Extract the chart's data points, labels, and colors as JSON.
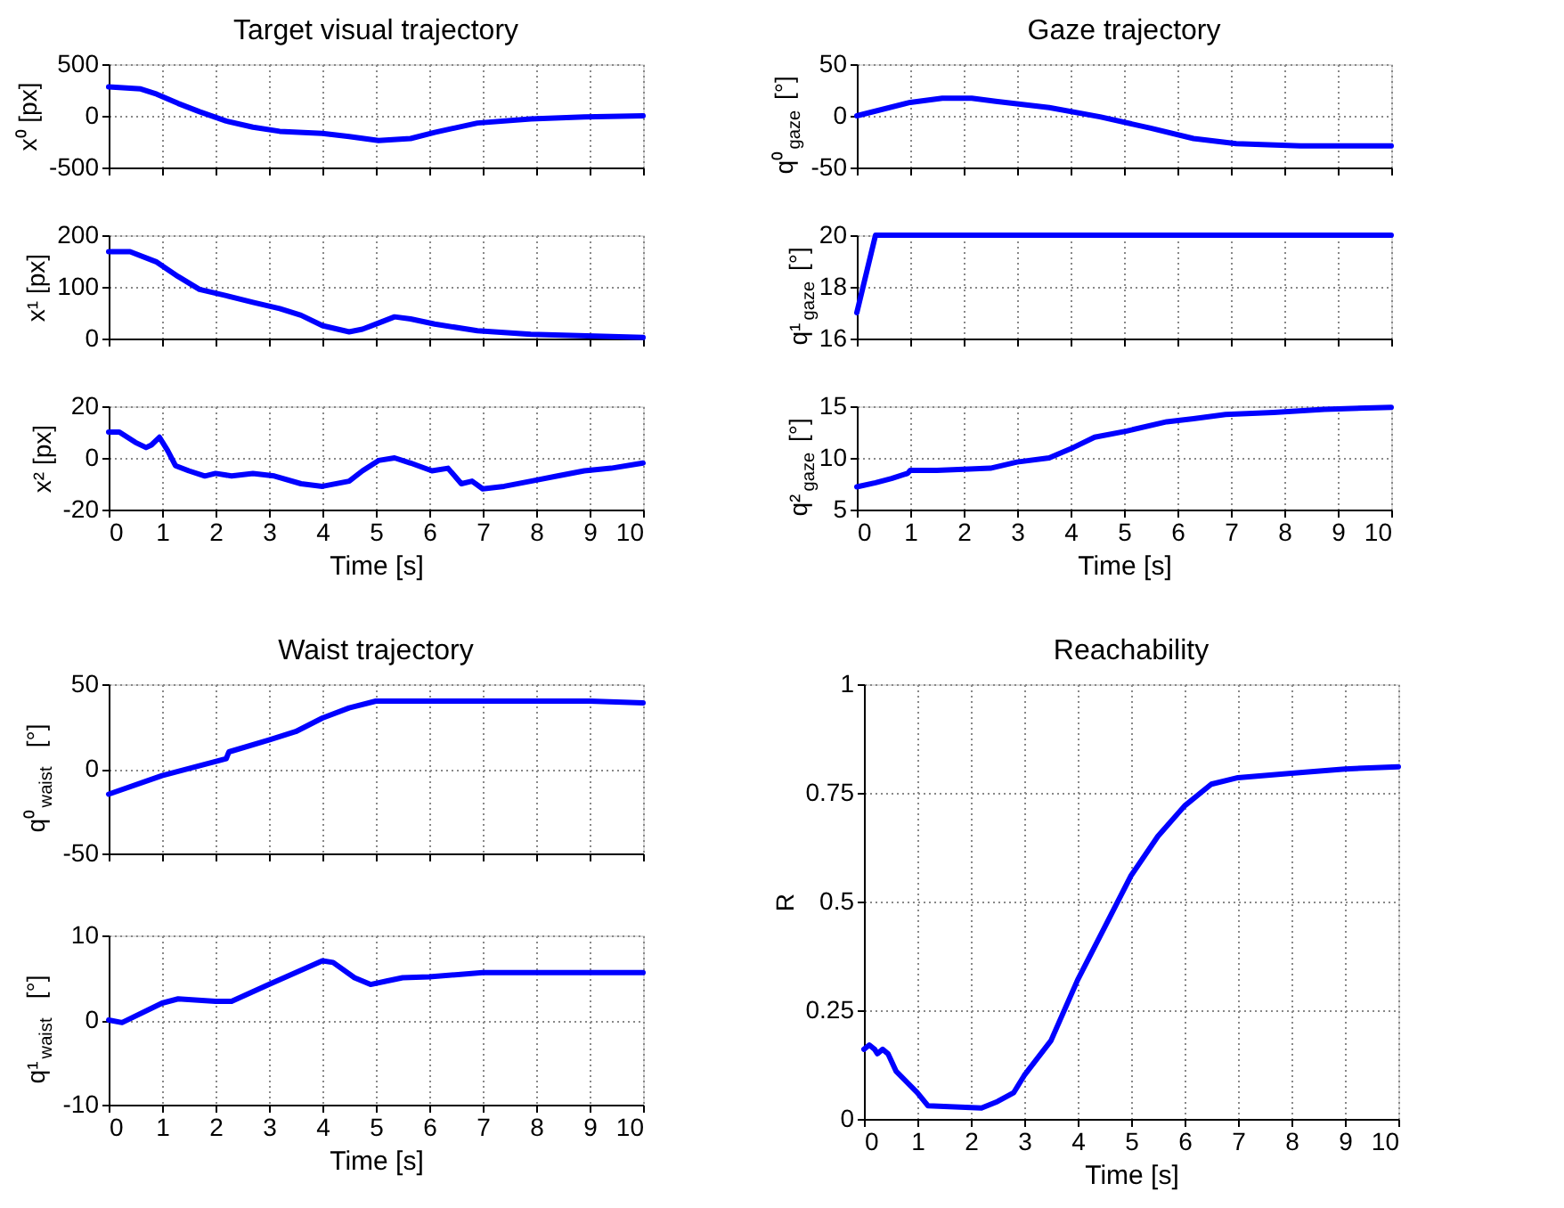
{
  "chart_data": [
    {
      "type": "line",
      "title": "Target visual trajectory",
      "ylabel": "x⁰ [px]",
      "color": "#0000ff",
      "grid": true,
      "tick_labels": "y",
      "xlim": [
        0,
        10
      ],
      "xticks": [
        0,
        1,
        2,
        3,
        4,
        5,
        6,
        7,
        8,
        9,
        10
      ],
      "ylim": [
        -500,
        500
      ],
      "yticks": [
        -500,
        0,
        500
      ],
      "x": [
        0,
        0.6,
        0.9,
        1.3,
        1.7,
        2.2,
        2.7,
        3.2,
        4.0,
        4.5,
        5.05,
        5.65,
        6.1,
        6.9,
        7.9,
        8.9,
        10
      ],
      "values": [
        280,
        260,
        210,
        120,
        40,
        -50,
        -110,
        -150,
        -170,
        -200,
        -240,
        -220,
        -160,
        -70,
        -30,
        -10,
        0
      ]
    },
    {
      "type": "line",
      "ylabel": "x¹ [px]",
      "color": "#0000ff",
      "grid": true,
      "tick_labels": "y",
      "xlim": [
        0,
        10
      ],
      "xticks": [
        0,
        1,
        2,
        3,
        4,
        5,
        6,
        7,
        8,
        9,
        10
      ],
      "ylim": [
        0,
        200
      ],
      "yticks": [
        0,
        100,
        200
      ],
      "x": [
        0,
        0.4,
        0.9,
        1.3,
        1.7,
        2.2,
        2.7,
        3.2,
        3.6,
        4.0,
        4.5,
        4.75,
        5.05,
        5.35,
        5.65,
        6.1,
        6.9,
        7.9,
        10
      ],
      "values": [
        168,
        168,
        148,
        120,
        95,
        83,
        70,
        58,
        45,
        25,
        13,
        18,
        30,
        42,
        38,
        28,
        15,
        8,
        2
      ]
    },
    {
      "type": "line",
      "ylabel": "x² [px]",
      "xlabel": "Time [s]",
      "color": "#0000ff",
      "grid": true,
      "xlim": [
        0,
        10
      ],
      "xticks": [
        0,
        1,
        2,
        3,
        4,
        5,
        6,
        7,
        8,
        9,
        10
      ],
      "ylim": [
        -20,
        20
      ],
      "yticks": [
        -20,
        0,
        20
      ],
      "x": [
        0,
        0.2,
        0.5,
        0.7,
        0.8,
        0.95,
        1.1,
        1.25,
        1.5,
        1.8,
        2.0,
        2.3,
        2.7,
        3.1,
        3.6,
        4.0,
        4.5,
        4.75,
        5.05,
        5.35,
        5.65,
        6.05,
        6.35,
        6.6,
        6.8,
        7.0,
        7.4,
        7.9,
        8.4,
        8.9,
        9.4,
        10
      ],
      "values": [
        10,
        10,
        6,
        4,
        5,
        8,
        3,
        -3,
        -5,
        -7,
        -6,
        -7,
        -6,
        -7,
        -10,
        -11,
        -9,
        -5,
        -1,
        0,
        -2,
        -5,
        -4,
        -10,
        -9,
        -12,
        -11,
        -9,
        -7,
        -5,
        -4,
        -2
      ]
    },
    {
      "type": "line",
      "title": "Gaze trajectory",
      "ylabel": "q⁰$_{gaze}$ [°]",
      "color": "#0000ff",
      "grid": true,
      "tick_labels": "y",
      "xlim": [
        0,
        10
      ],
      "xticks": [
        0,
        1,
        2,
        3,
        4,
        5,
        6,
        7,
        8,
        9,
        10
      ],
      "ylim": [
        -50,
        50
      ],
      "yticks": [
        -50,
        0,
        50
      ],
      "x": [
        0,
        1.0,
        1.6,
        2.15,
        2.6,
        3.6,
        4.55,
        5.5,
        6.3,
        7.1,
        8.3,
        10
      ],
      "values": [
        0,
        13,
        17,
        17,
        14,
        8,
        -1,
        -12,
        -22,
        -27,
        -29,
        -29
      ]
    },
    {
      "type": "line",
      "ylabel": "q¹$_{gaze}$ [°]",
      "color": "#0000ff",
      "grid": true,
      "tick_labels": "y",
      "xlim": [
        0,
        10
      ],
      "xticks": [
        0,
        1,
        2,
        3,
        4,
        5,
        6,
        7,
        8,
        9,
        10
      ],
      "ylim": [
        16,
        20
      ],
      "yticks": [
        16,
        18,
        20
      ],
      "x": [
        0,
        0.35,
        10
      ],
      "values": [
        17,
        20,
        20
      ]
    },
    {
      "type": "line",
      "ylabel": "q²$_{gaze}$ [°]",
      "xlabel": "Time [s]",
      "color": "#0000ff",
      "grid": true,
      "xlim": [
        0,
        10
      ],
      "xticks": [
        0,
        1,
        2,
        3,
        4,
        5,
        6,
        7,
        8,
        9,
        10
      ],
      "ylim": [
        5,
        15
      ],
      "yticks": [
        5,
        10,
        15
      ],
      "x": [
        0,
        0.35,
        0.65,
        0.95,
        1.0,
        1.5,
        2.5,
        3.0,
        3.6,
        4.05,
        4.45,
        5.05,
        5.8,
        6.3,
        6.9,
        7.8,
        8.75,
        10
      ],
      "values": [
        7.2,
        7.6,
        8,
        8.5,
        8.8,
        8.8,
        9,
        9.6,
        10,
        11,
        12,
        12.6,
        13.5,
        13.8,
        14.2,
        14.4,
        14.7,
        14.9
      ]
    },
    {
      "type": "line",
      "title": "Waist trajectory",
      "ylabel": "q⁰$_{waist}$ [°]",
      "color": "#0000ff",
      "grid": true,
      "tick_labels": "y",
      "xlim": [
        0,
        10
      ],
      "xticks": [
        0,
        1,
        2,
        3,
        4,
        5,
        6,
        7,
        8,
        9,
        10
      ],
      "ylim": [
        -50,
        50
      ],
      "yticks": [
        -50,
        0,
        50
      ],
      "x": [
        0,
        1,
        2.2,
        2.25,
        3,
        3.5,
        4,
        4.5,
        5,
        9,
        10
      ],
      "values": [
        -15,
        -4,
        6,
        10,
        17,
        22,
        30,
        36,
        40,
        40,
        39
      ]
    },
    {
      "type": "line",
      "ylabel": "q¹$_{waist}$ [°]",
      "xlabel": "Time [s]",
      "color": "#0000ff",
      "grid": true,
      "xlim": [
        0,
        10
      ],
      "xticks": [
        0,
        1,
        2,
        3,
        4,
        5,
        6,
        7,
        8,
        9,
        10
      ],
      "ylim": [
        -10,
        10
      ],
      "yticks": [
        -10,
        0,
        10
      ],
      "x": [
        0,
        0.25,
        1,
        1.3,
        2,
        2.3,
        3,
        3.5,
        4,
        4.2,
        4.6,
        4.9,
        5.2,
        5.5,
        6,
        7,
        10
      ],
      "values": [
        0,
        -0.3,
        2,
        2.5,
        2.2,
        2.2,
        4.2,
        5.6,
        7,
        6.8,
        5,
        4.2,
        4.6,
        5,
        5.1,
        5.6,
        5.6
      ]
    },
    {
      "type": "line",
      "title": "Reachability",
      "ylabel": "R",
      "xlabel": "Time [s]",
      "color": "#0000ff",
      "grid": true,
      "xlim": [
        0,
        10
      ],
      "xticks": [
        0,
        1,
        2,
        3,
        4,
        5,
        6,
        7,
        8,
        9,
        10
      ],
      "ylim": [
        0,
        1
      ],
      "yticks": [
        0,
        0.25,
        0.5,
        0.75,
        1
      ],
      "x": [
        0,
        0.1,
        0.2,
        0.25,
        0.35,
        0.45,
        0.6,
        1.0,
        1.2,
        2.2,
        2.5,
        2.8,
        3,
        3.5,
        4,
        4.5,
        5,
        5.5,
        6,
        6.5,
        7,
        8,
        9,
        10
      ],
      "values": [
        0.16,
        0.17,
        0.16,
        0.15,
        0.16,
        0.15,
        0.11,
        0.06,
        0.03,
        0.025,
        0.04,
        0.06,
        0.1,
        0.18,
        0.32,
        0.44,
        0.56,
        0.65,
        0.72,
        0.77,
        0.785,
        0.795,
        0.805,
        0.81
      ]
    }
  ]
}
